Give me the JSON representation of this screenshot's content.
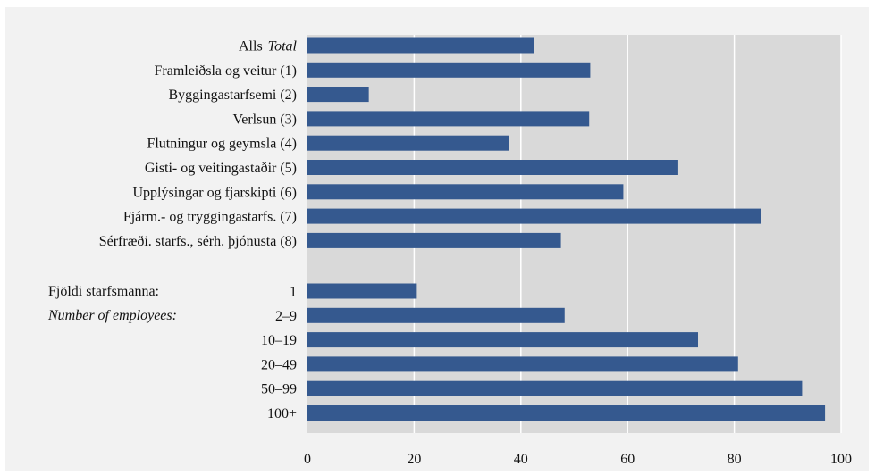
{
  "chart_data": {
    "type": "bar",
    "orientation": "horizontal",
    "xlim": [
      0,
      100
    ],
    "x_ticks": [
      "0",
      "20",
      "40",
      "60",
      "80",
      "100"
    ],
    "grid": "vertical",
    "bar_color": "#35598f",
    "plot_background": "#d9d9d9",
    "groups": [
      {
        "categories": [
          {
            "label": "Alls",
            "label_en": "Total",
            "value": 42.5
          },
          {
            "label": "Framleiðsla og veitur (1)",
            "value": 53
          },
          {
            "label": "Byggingastarfsemi (2)",
            "value": 11.5
          },
          {
            "label": "Verlsun (3)",
            "value": 52.8
          },
          {
            "label": "Flutningur og geymsla (4)",
            "value": 37.8
          },
          {
            "label": "Gisti- og veitingastaðir (5)",
            "value": 69.5
          },
          {
            "label": "Upplýsingar og fjarskipti (6)",
            "value": 59.2
          },
          {
            "label": "Fjárm.- og tryggingastarfs. (7)",
            "value": 85
          },
          {
            "label": "Sérfræði. starfs., sérh. þjónusta (8)",
            "value": 47.5
          }
        ]
      },
      {
        "title": "Fjöldi starfsmanna:",
        "title_en": "Number of employees:",
        "categories": [
          {
            "label": "1",
            "value": 20.5
          },
          {
            "label": "2–9",
            "value": 48.2
          },
          {
            "label": "10–19",
            "value": 73.2
          },
          {
            "label": "20–49",
            "value": 80.7
          },
          {
            "label": "50–99",
            "value": 92.7
          },
          {
            "label": "100+",
            "value": 97
          }
        ]
      }
    ]
  }
}
